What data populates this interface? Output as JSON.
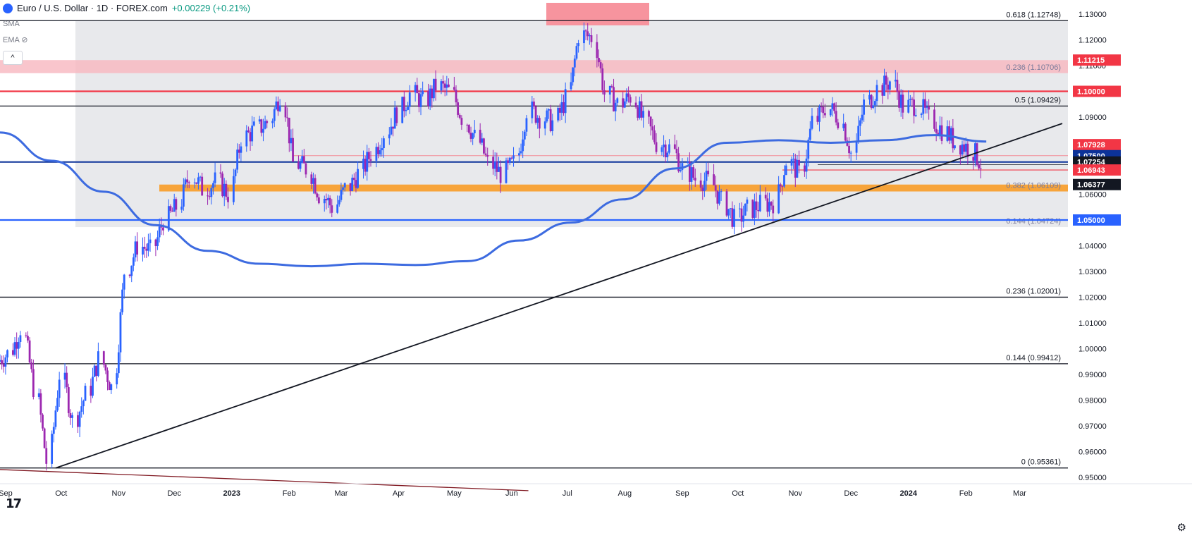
{
  "header": {
    "symbol": "Euro / U.S. Dollar · 1D · FOREX.com",
    "change": "+0.00229 (+0.21%)",
    "sma": "SMA",
    "ema": "EMA"
  },
  "colors": {
    "up": "#2962ff",
    "down": "#9c27b0",
    "sma200": "#3d6be0",
    "red_level": "#f23645",
    "blue_level": "#2962ff",
    "orange_zone": "#f7a43a",
    "grey_zone": "#e0e1e6",
    "pink_zone": "#f7b6bf"
  },
  "chart_data": {
    "type": "candlestick",
    "title": "Euro / U.S. Dollar · 1D · FOREX.com",
    "x_tick_labels": [
      "Sep",
      "Oct",
      "Nov",
      "Dec",
      "2023",
      "Feb",
      "Mar",
      "Apr",
      "May",
      "Jun",
      "Jul",
      "Aug",
      "Sep",
      "Oct",
      "Nov",
      "Dec",
      "2024",
      "Feb",
      "Mar"
    ],
    "y_tick_labels": [
      "1.13000",
      "1.12000",
      "1.11000",
      "1.10000",
      "1.09000",
      "1.08000",
      "1.07000",
      "1.06000",
      "1.05000",
      "1.04000",
      "1.03000",
      "1.02000",
      "1.01000",
      "1.00000",
      "0.99000",
      "0.98000",
      "0.97000",
      "0.96000",
      "0.95000"
    ],
    "ylim": [
      0.9475,
      1.1355
    ],
    "price_path": [
      [
        "2022-08-29",
        0.995
      ],
      [
        "2022-09-05",
        0.998
      ],
      [
        "2022-09-12",
        1.008
      ],
      [
        "2022-09-19",
        0.985
      ],
      [
        "2022-09-26",
        0.956
      ],
      [
        "2022-10-03",
        0.99
      ],
      [
        "2022-10-10",
        0.972
      ],
      [
        "2022-10-17",
        0.982
      ],
      [
        "2022-10-24",
        0.996
      ],
      [
        "2022-10-31",
        0.985
      ],
      [
        "2022-11-07",
        1.03
      ],
      [
        "2022-11-14",
        1.04
      ],
      [
        "2022-11-21",
        1.038
      ],
      [
        "2022-11-28",
        1.05
      ],
      [
        "2022-12-05",
        1.055
      ],
      [
        "2022-12-12",
        1.068
      ],
      [
        "2022-12-19",
        1.062
      ],
      [
        "2022-12-26",
        1.065
      ],
      [
        "2023-01-02",
        1.06
      ],
      [
        "2023-01-09",
        1.082
      ],
      [
        "2023-01-16",
        1.085
      ],
      [
        "2023-01-23",
        1.088
      ],
      [
        "2023-01-30",
        1.099
      ],
      [
        "2023-02-06",
        1.072
      ],
      [
        "2023-02-13",
        1.07
      ],
      [
        "2023-02-20",
        1.06
      ],
      [
        "2023-02-27",
        1.055
      ],
      [
        "2023-03-06",
        1.062
      ],
      [
        "2023-03-13",
        1.068
      ],
      [
        "2023-03-20",
        1.076
      ],
      [
        "2023-03-27",
        1.084
      ],
      [
        "2023-04-03",
        1.092
      ],
      [
        "2023-04-10",
        1.099
      ],
      [
        "2023-04-17",
        1.096
      ],
      [
        "2023-04-24",
        1.102
      ],
      [
        "2023-05-01",
        1.1
      ],
      [
        "2023-05-08",
        1.09
      ],
      [
        "2023-05-15",
        1.082
      ],
      [
        "2023-05-22",
        1.072
      ],
      [
        "2023-05-29",
        1.068
      ],
      [
        "2023-06-05",
        1.072
      ],
      [
        "2023-06-12",
        1.093
      ],
      [
        "2023-06-19",
        1.09
      ],
      [
        "2023-06-26",
        1.088
      ],
      [
        "2023-07-03",
        1.097
      ],
      [
        "2023-07-10",
        1.122
      ],
      [
        "2023-07-17",
        1.121
      ],
      [
        "2023-07-24",
        1.099
      ],
      [
        "2023-07-31",
        1.095
      ],
      [
        "2023-08-07",
        1.098
      ],
      [
        "2023-08-14",
        1.088
      ],
      [
        "2023-08-21",
        1.08
      ],
      [
        "2023-08-28",
        1.078
      ],
      [
        "2023-09-04",
        1.07
      ],
      [
        "2023-09-11",
        1.066
      ],
      [
        "2023-09-18",
        1.065
      ],
      [
        "2023-09-25",
        1.057
      ],
      [
        "2023-10-02",
        1.05
      ],
      [
        "2023-10-09",
        1.054
      ],
      [
        "2023-10-16",
        1.056
      ],
      [
        "2023-10-23",
        1.057
      ],
      [
        "2023-10-30",
        1.073
      ],
      [
        "2023-11-06",
        1.068
      ],
      [
        "2023-11-13",
        1.088
      ],
      [
        "2023-11-20",
        1.094
      ],
      [
        "2023-11-27",
        1.09
      ],
      [
        "2023-12-04",
        1.076
      ],
      [
        "2023-12-11",
        1.095
      ],
      [
        "2023-12-18",
        1.101
      ],
      [
        "2023-12-25",
        1.104
      ],
      [
        "2024-01-01",
        1.094
      ],
      [
        "2024-01-08",
        1.095
      ],
      [
        "2024-01-15",
        1.089
      ],
      [
        "2024-01-22",
        1.085
      ],
      [
        "2024-01-29",
        1.08
      ],
      [
        "2024-02-05",
        1.078
      ],
      [
        "2024-02-12",
        1.072
      ]
    ],
    "sma200_path": [
      [
        "2022-08-29",
        1.084
      ],
      [
        "2022-09-26",
        1.073
      ],
      [
        "2022-10-24",
        1.061
      ],
      [
        "2022-11-21",
        1.048
      ],
      [
        "2022-12-19",
        1.038
      ],
      [
        "2023-01-16",
        1.033
      ],
      [
        "2023-02-13",
        1.032
      ],
      [
        "2023-03-13",
        1.033
      ],
      [
        "2023-04-10",
        1.0325
      ],
      [
        "2023-05-08",
        1.034
      ],
      [
        "2023-06-05",
        1.042
      ],
      [
        "2023-07-03",
        1.049
      ],
      [
        "2023-07-31",
        1.058
      ],
      [
        "2023-08-28",
        1.07
      ],
      [
        "2023-09-25",
        1.08
      ],
      [
        "2023-10-23",
        1.081
      ],
      [
        "2023-11-20",
        1.08
      ],
      [
        "2023-12-18",
        1.081
      ],
      [
        "2024-01-15",
        1.083
      ],
      [
        "2024-02-12",
        1.0805
      ]
    ],
    "levels": [
      {
        "price": 1.12748,
        "label": "0.618 (1.12748)",
        "kind": "fib"
      },
      {
        "price": 1.10706,
        "label": "0.236 (1.10706)",
        "kind": "fib-faint"
      },
      {
        "price": 1.09429,
        "label": "0.5 (1.09429)",
        "kind": "fib"
      },
      {
        "price": 1.06109,
        "label": "0.382 (1.06109)",
        "kind": "fib-faint"
      },
      {
        "price": 1.04724,
        "label": "0.144 (1.04724)",
        "kind": "fib-faint"
      },
      {
        "price": 1.02001,
        "label": "0.236 (1.02001)",
        "kind": "fib"
      },
      {
        "price": 0.99412,
        "label": "0.144 (0.99412)",
        "kind": "fib"
      },
      {
        "price": 0.95361,
        "label": "0 (0.95361)",
        "kind": "fib"
      }
    ],
    "price_tags": [
      {
        "price": 1.11215,
        "label": "1.11215",
        "color": "#f23645"
      },
      {
        "price": 1.1,
        "label": "1.10000",
        "color": "#f23645"
      },
      {
        "price": 1.07928,
        "label": "1.07928",
        "color": "#f23645"
      },
      {
        "price": 1.075,
        "label": "1.07500",
        "color": "#0c3299"
      },
      {
        "price": 1.07254,
        "label": "1.07254",
        "color": "#131722"
      },
      {
        "price": 1.06943,
        "label": "1.06943",
        "color": "#f23645"
      },
      {
        "price": 1.06377,
        "label": "1.06377",
        "color": "#131722"
      },
      {
        "price": 1.05,
        "label": "1.05000",
        "color": "#2962ff"
      }
    ],
    "trendline_up": [
      [
        "2022-09-28",
        0.9536
      ],
      [
        "2024-03-24",
        1.0875
      ]
    ],
    "trendline_down": [
      [
        "2022-08-29",
        0.953
      ],
      [
        "2023-06-10",
        0.9448
      ]
    ]
  }
}
